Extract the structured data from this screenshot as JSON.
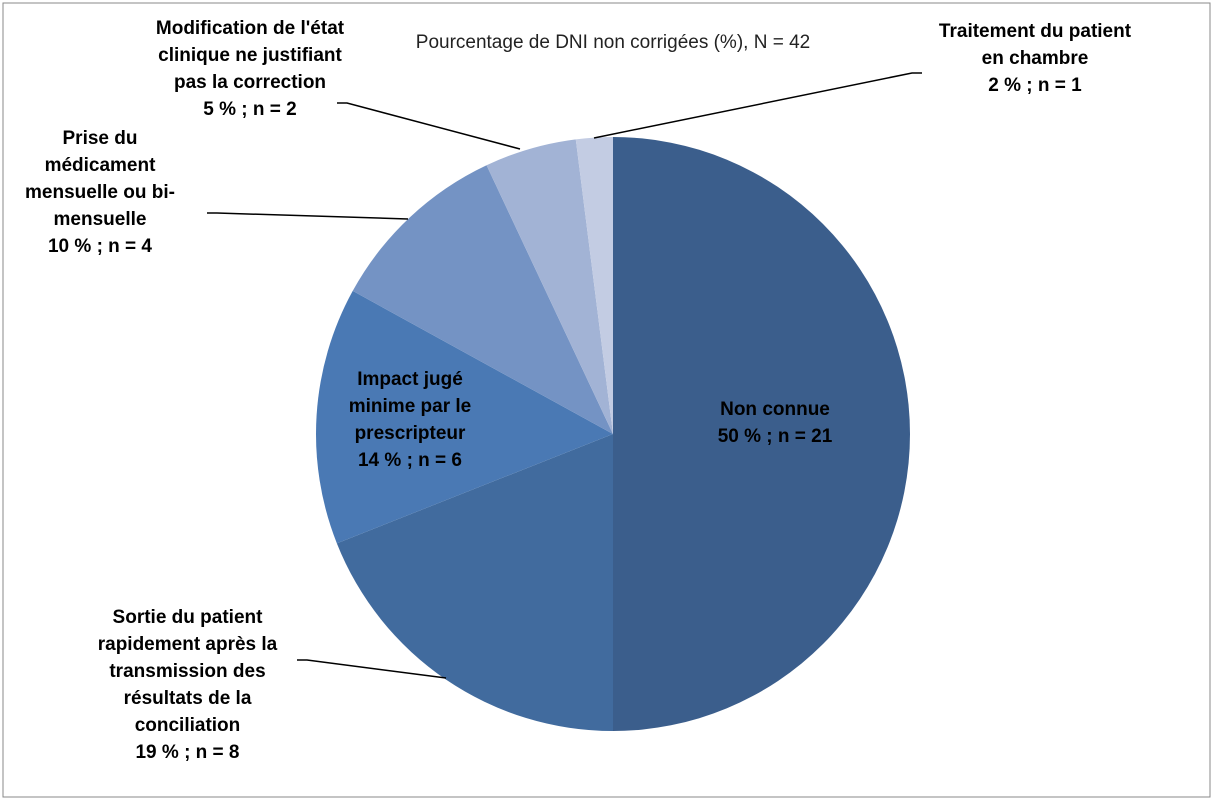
{
  "chart_data": {
    "type": "pie",
    "title": "Pourcentage de DNI non corrigées (%), N = 42",
    "categories": [
      "Non connue",
      "Sortie du patient rapidement après la transmission des résultats de la conciliation",
      "Impact jugé minime par le prescripteur",
      "Prise du médicament mensuelle ou bi-mensuelle",
      "Modification de l'état clinique ne justifiant pas la correction",
      "Traitement du patient en chambre"
    ],
    "values": [
      50,
      19,
      14,
      10,
      5,
      2
    ],
    "value_labels": [
      "50 % ; n = 21",
      "19 % ; n = 8",
      "14 % ; n = 6",
      "10 % ; n = 4",
      "5 % ; n = 2",
      "2 % ; n = 1"
    ],
    "colors": [
      "#3b5e8c",
      "#416b9e",
      "#4a79b4",
      "#7493c4",
      "#a2b3d5",
      "#c3cce3"
    ]
  }
}
